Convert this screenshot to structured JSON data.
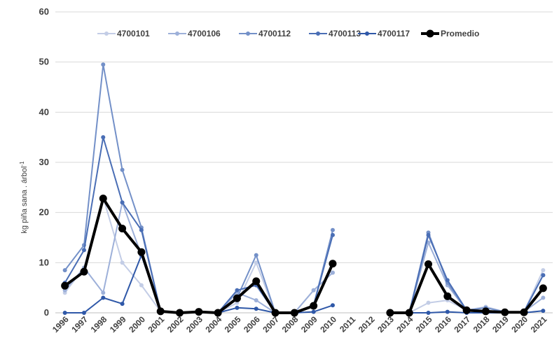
{
  "chart_data": {
    "type": "line",
    "title": "",
    "xlabel": "",
    "ylabel": "kg piña sana . árbol",
    "ylabel_superscript": "-1",
    "ylim": [
      0,
      60
    ],
    "yticks": [
      0,
      10,
      20,
      30,
      40,
      50,
      60
    ],
    "grid": "horizontal",
    "legend_position": "top",
    "categories": [
      "1996",
      "1997",
      "1998",
      "1999",
      "2000",
      "2001",
      "2002",
      "2003",
      "2004",
      "2005",
      "2006",
      "2007",
      "2008",
      "2009",
      "2010",
      "2011",
      "2012",
      "2013",
      "2014",
      "2015",
      "2016",
      "2017",
      "2018",
      "2019",
      "2020",
      "2021"
    ],
    "series": [
      {
        "name": "4700101",
        "color": "#c3cde6",
        "width": 2,
        "marker": 3,
        "values": [
          4,
          9,
          23,
          10,
          5.5,
          0.3,
          0,
          0.2,
          0,
          2,
          10,
          0,
          0,
          4.5,
          8,
          null,
          null,
          0,
          0,
          2,
          2.5,
          0.5,
          1.2,
          0.2,
          0.2,
          8.5
        ]
      },
      {
        "name": "4700106",
        "color": "#9db0d9",
        "width": 2,
        "marker": 3,
        "values": [
          4.5,
          9,
          4,
          22,
          11.5,
          0.3,
          0,
          0.2,
          0,
          4,
          2.5,
          0,
          0,
          4.5,
          8,
          null,
          null,
          0,
          0,
          14,
          5.5,
          0.5,
          1,
          0.2,
          0.2,
          3
        ]
      },
      {
        "name": "4700112",
        "color": "#7390c8",
        "width": 2,
        "marker": 3,
        "values": [
          8.5,
          13.5,
          49.5,
          28.5,
          17,
          0.3,
          0,
          0.2,
          0,
          3,
          11.5,
          0,
          0,
          1.5,
          16.5,
          null,
          null,
          0,
          0,
          16,
          6,
          0.5,
          1,
          0.2,
          0.2,
          7.5
        ]
      },
      {
        "name": "4700113",
        "color": "#4a6eb5",
        "width": 2,
        "marker": 3,
        "values": [
          6,
          12.5,
          35,
          22,
          16.5,
          0.3,
          0,
          0.2,
          0,
          4.5,
          5.5,
          0,
          0,
          1.5,
          15.5,
          null,
          null,
          0,
          0,
          15.5,
          6.5,
          0.5,
          0.3,
          0.2,
          0.2,
          7.5
        ]
      },
      {
        "name": "4700117",
        "color": "#2f58a8",
        "width": 2,
        "marker": 3,
        "values": [
          0,
          0,
          3,
          1.8,
          11.5,
          0.2,
          0,
          0,
          0,
          1,
          0.8,
          0,
          0,
          0.2,
          1.5,
          null,
          null,
          0,
          0,
          0,
          0.2,
          0,
          0,
          0,
          0,
          0.4
        ]
      },
      {
        "name": "Promedio",
        "color": "#000000",
        "width": 4,
        "marker": 5.5,
        "values": [
          5.4,
          8.2,
          22.8,
          16.8,
          12.1,
          0.3,
          0,
          0.2,
          0,
          2.9,
          6.3,
          0,
          0,
          1.4,
          9.8,
          null,
          null,
          0,
          0,
          9.7,
          3.3,
          0.5,
          0.3,
          0.1,
          0.1,
          4.9
        ]
      }
    ]
  }
}
